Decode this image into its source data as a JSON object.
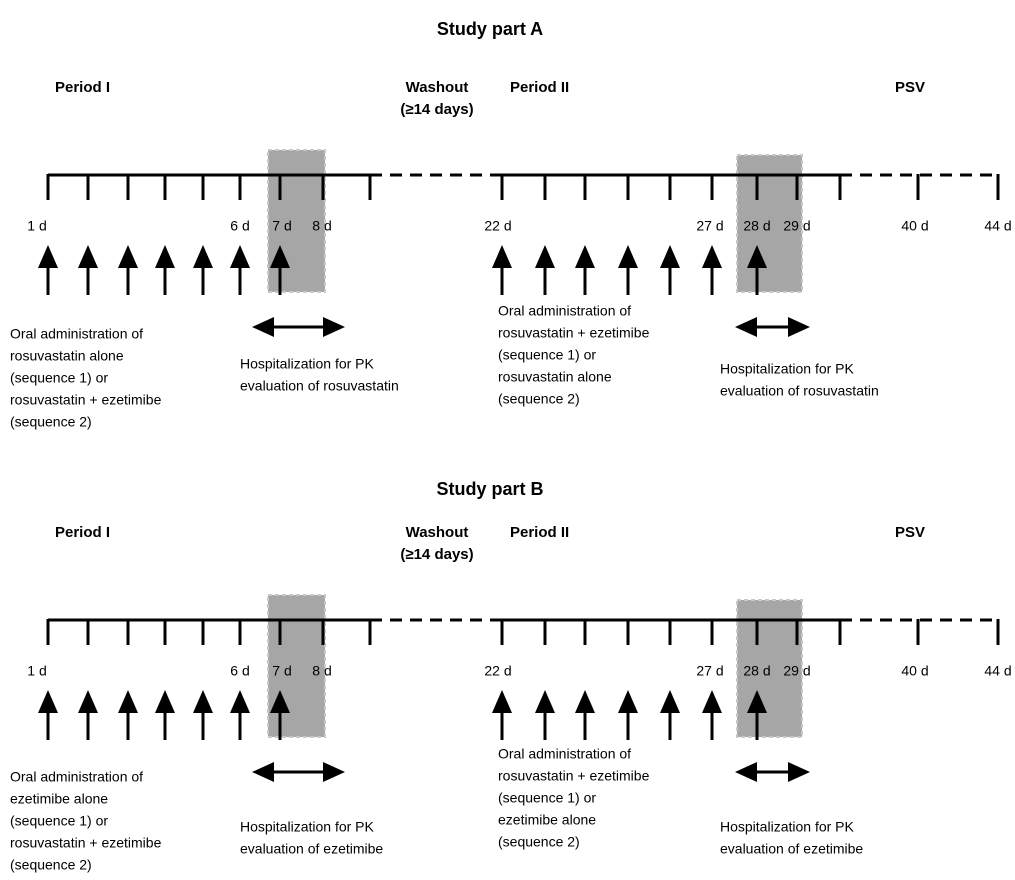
{
  "parts": [
    {
      "title": "Study part A",
      "periods": [
        [
          "Period I"
        ],
        [
          "Washout",
          "(≥14 days)"
        ],
        [
          "Period II"
        ],
        [
          "PSV"
        ]
      ],
      "days": [
        "1 d",
        "6 d",
        "7 d",
        "8 d",
        "22 d",
        "27 d",
        "28 d",
        "29 d",
        "40 d",
        "44 d"
      ],
      "notes": [
        [
          "Oral administration of",
          "rosuvastatin alone",
          "(sequence 1) or",
          "rosuvastatin + ezetimibe",
          "(sequence 2)"
        ],
        [
          "Hospitalization for PK",
          "evaluation of rosuvastatin"
        ],
        [
          "Oral administration of",
          "rosuvastatin + ezetimibe",
          "(sequence 1) or",
          "rosuvastatin alone",
          "(sequence 2)"
        ],
        [
          "Hospitalization for PK",
          "evaluation of rosuvastatin"
        ]
      ]
    },
    {
      "title": "Study part B",
      "periods": [
        [
          "Period I"
        ],
        [
          "Washout",
          "(≥14 days)"
        ],
        [
          "Period II"
        ],
        [
          "PSV"
        ]
      ],
      "days": [
        "1 d",
        "6 d",
        "7 d",
        "8 d",
        "22 d",
        "27 d",
        "28 d",
        "29 d",
        "40 d",
        "44 d"
      ],
      "notes": [
        [
          "Oral administration of",
          "ezetimibe alone",
          "(sequence 1) or",
          "rosuvastatin + ezetimibe",
          "(sequence 2)"
        ],
        [
          "Hospitalization for PK",
          "evaluation of ezetimibe"
        ],
        [
          "Oral administration of",
          "rosuvastatin + ezetimibe",
          "(sequence 1) or",
          "ezetimibe alone",
          "(sequence 2)"
        ],
        [
          "Hospitalization for PK",
          "evaluation of ezetimibe"
        ]
      ]
    }
  ]
}
